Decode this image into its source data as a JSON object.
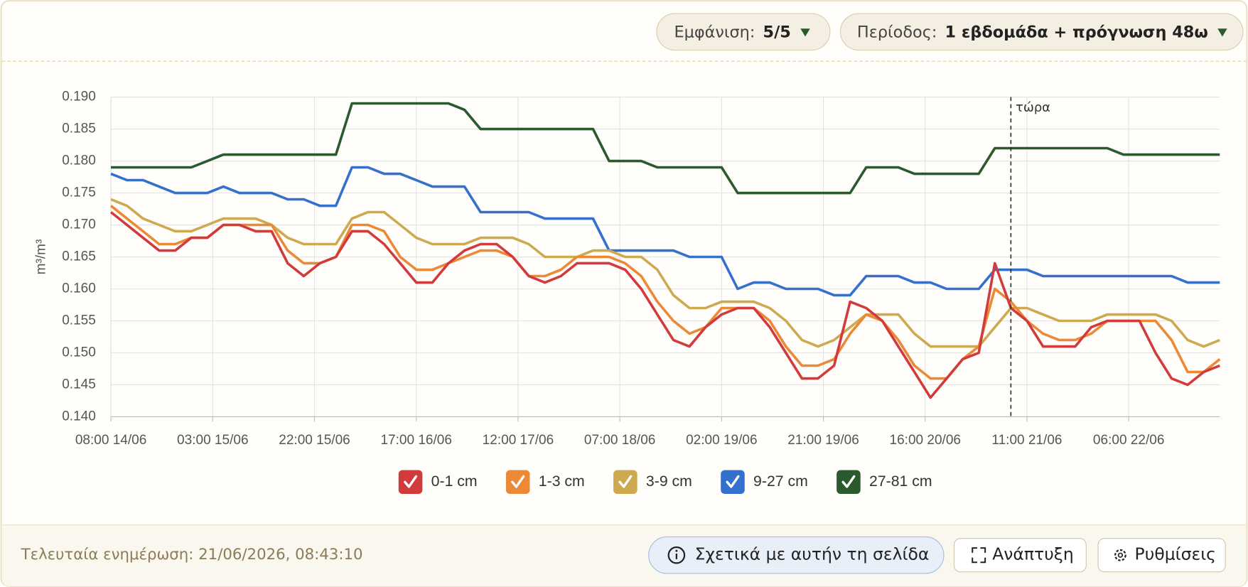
{
  "header": {
    "display_label": "Εμφάνιση:",
    "display_value": "5/5",
    "period_label": "Περίοδος:",
    "period_value": "1 εβδομάδα + πρόγνωση 48ω"
  },
  "chart_data": {
    "type": "line",
    "y_label": "m³/m³",
    "grid": true,
    "legend": "bottom",
    "ylim": [
      0.14,
      0.19
    ],
    "yticks": [
      {
        "value": 0.14,
        "label": "0.140"
      },
      0.145,
      {
        "value": 0.15,
        "label": "0.150"
      },
      0.155,
      {
        "value": 0.16,
        "label": "0.160"
      },
      0.165,
      {
        "value": 0.17,
        "label": "0.170"
      },
      0.175,
      {
        "value": 0.18,
        "label": "0.180"
      },
      0.185,
      {
        "value": 0.19,
        "label": "0.190"
      }
    ],
    "xlim": [
      "08:00 14/06",
      "23:00 22/06"
    ],
    "xticks": [
      "08:00 14/06",
      "03:00 15/06",
      "22:00 15/06",
      "17:00 16/06",
      "12:00 17/06",
      "07:00 18/06",
      "02:00 19/06",
      "21:00 19/06",
      "16:00 20/06",
      "11:00 21/06",
      "06:00 22/06"
    ],
    "annotations": [
      {
        "x": "08:00 21/06",
        "text": "τώρα"
      }
    ],
    "x": [
      "08:00 14/06",
      "11:00 14/06",
      "14:00 14/06",
      "17:00 14/06",
      "20:00 14/06",
      "23:00 14/06",
      "02:00 15/06",
      "05:00 15/06",
      "08:00 15/06",
      "11:00 15/06",
      "14:00 15/06",
      "17:00 15/06",
      "20:00 15/06",
      "23:00 15/06",
      "02:00 16/06",
      "05:00 16/06",
      "08:00 16/06",
      "11:00 16/06",
      "14:00 16/06",
      "17:00 16/06",
      "20:00 16/06",
      "23:00 16/06",
      "02:00 17/06",
      "05:00 17/06",
      "08:00 17/06",
      "11:00 17/06",
      "14:00 17/06",
      "17:00 17/06",
      "20:00 17/06",
      "23:00 17/06",
      "02:00 18/06",
      "05:00 18/06",
      "08:00 18/06",
      "11:00 18/06",
      "14:00 18/06",
      "17:00 18/06",
      "20:00 18/06",
      "23:00 18/06",
      "02:00 19/06",
      "05:00 19/06",
      "08:00 19/06",
      "11:00 19/06",
      "14:00 19/06",
      "17:00 19/06",
      "20:00 19/06",
      "23:00 19/06",
      "02:00 20/06",
      "05:00 20/06",
      "08:00 20/06",
      "11:00 20/06",
      "14:00 20/06",
      "17:00 20/06",
      "20:00 20/06",
      "23:00 20/06",
      "02:00 21/06",
      "05:00 21/06",
      "08:00 21/06",
      "11:00 21/06",
      "14:00 21/06",
      "17:00 21/06",
      "20:00 21/06",
      "23:00 21/06",
      "02:00 22/06",
      "05:00 22/06",
      "08:00 22/06",
      "11:00 22/06",
      "14:00 22/06",
      "17:00 22/06",
      "20:00 22/06",
      "23:00 22/06"
    ],
    "series": [
      {
        "name": "0-1 cm",
        "color": "#d23b3b",
        "values": [
          0.172,
          0.17,
          0.168,
          0.166,
          0.166,
          0.168,
          0.168,
          0.17,
          0.17,
          0.169,
          0.169,
          0.164,
          0.162,
          0.164,
          0.165,
          0.169,
          0.169,
          0.167,
          0.164,
          0.161,
          0.161,
          0.164,
          0.166,
          0.167,
          0.167,
          0.165,
          0.162,
          0.161,
          0.162,
          0.164,
          0.164,
          0.164,
          0.163,
          0.16,
          0.156,
          0.152,
          0.151,
          0.154,
          0.156,
          0.157,
          0.157,
          0.154,
          0.15,
          0.146,
          0.146,
          0.148,
          0.158,
          0.157,
          0.155,
          0.151,
          0.147,
          0.143,
          0.146,
          0.149,
          0.15,
          0.164,
          0.157,
          0.155,
          0.151,
          0.151,
          0.151,
          0.154,
          0.155,
          0.155,
          0.155,
          0.15,
          0.146,
          0.145,
          0.147,
          0.148
        ]
      },
      {
        "name": "1-3 cm",
        "color": "#ec8936",
        "values": [
          0.173,
          0.171,
          0.169,
          0.167,
          0.167,
          0.168,
          0.168,
          0.17,
          0.17,
          0.17,
          0.17,
          0.166,
          0.164,
          0.164,
          0.165,
          0.17,
          0.17,
          0.169,
          0.165,
          0.163,
          0.163,
          0.164,
          0.165,
          0.166,
          0.166,
          0.165,
          0.162,
          0.162,
          0.163,
          0.165,
          0.165,
          0.165,
          0.164,
          0.162,
          0.158,
          0.155,
          0.153,
          0.154,
          0.157,
          0.157,
          0.157,
          0.155,
          0.151,
          0.148,
          0.148,
          0.149,
          0.153,
          0.156,
          0.155,
          0.152,
          0.148,
          0.146,
          0.146,
          0.149,
          0.151,
          0.16,
          0.158,
          0.155,
          0.153,
          0.152,
          0.152,
          0.153,
          0.155,
          0.155,
          0.155,
          0.155,
          0.152,
          0.147,
          0.147,
          0.149
        ]
      },
      {
        "name": "3-9 cm",
        "color": "#cdaa4f",
        "values": [
          0.174,
          0.173,
          0.171,
          0.17,
          0.169,
          0.169,
          0.17,
          0.171,
          0.171,
          0.171,
          0.17,
          0.168,
          0.167,
          0.167,
          0.167,
          0.171,
          0.172,
          0.172,
          0.17,
          0.168,
          0.167,
          0.167,
          0.167,
          0.168,
          0.168,
          0.168,
          0.167,
          0.165,
          0.165,
          0.165,
          0.166,
          0.166,
          0.165,
          0.165,
          0.163,
          0.159,
          0.157,
          0.157,
          0.158,
          0.158,
          0.158,
          0.157,
          0.155,
          0.152,
          0.151,
          0.152,
          0.154,
          0.156,
          0.156,
          0.156,
          0.153,
          0.151,
          0.151,
          0.151,
          0.151,
          0.154,
          0.157,
          0.157,
          0.156,
          0.155,
          0.155,
          0.155,
          0.156,
          0.156,
          0.156,
          0.156,
          0.155,
          0.152,
          0.151,
          0.152
        ]
      },
      {
        "name": "9-27 cm",
        "color": "#3470cc",
        "values": [
          0.178,
          0.177,
          0.177,
          0.176,
          0.175,
          0.175,
          0.175,
          0.176,
          0.175,
          0.175,
          0.175,
          0.174,
          0.174,
          0.173,
          0.173,
          0.179,
          0.179,
          0.178,
          0.178,
          0.177,
          0.176,
          0.176,
          0.176,
          0.172,
          0.172,
          0.172,
          0.172,
          0.171,
          0.171,
          0.171,
          0.171,
          0.166,
          0.166,
          0.166,
          0.166,
          0.166,
          0.165,
          0.165,
          0.165,
          0.16,
          0.161,
          0.161,
          0.16,
          0.16,
          0.16,
          0.159,
          0.159,
          0.162,
          0.162,
          0.162,
          0.161,
          0.161,
          0.16,
          0.16,
          0.16,
          0.163,
          0.163,
          0.163,
          0.162,
          0.162,
          0.162,
          0.162,
          0.162,
          0.162,
          0.162,
          0.162,
          0.162,
          0.161,
          0.161,
          0.161
        ]
      },
      {
        "name": "27-81 cm",
        "color": "#2b5a2f",
        "values": [
          0.179,
          0.179,
          0.179,
          0.179,
          0.179,
          0.179,
          0.18,
          0.181,
          0.181,
          0.181,
          0.181,
          0.181,
          0.181,
          0.181,
          0.181,
          0.189,
          0.189,
          0.189,
          0.189,
          0.189,
          0.189,
          0.189,
          0.188,
          0.185,
          0.185,
          0.185,
          0.185,
          0.185,
          0.185,
          0.185,
          0.185,
          0.18,
          0.18,
          0.18,
          0.179,
          0.179,
          0.179,
          0.179,
          0.179,
          0.175,
          0.175,
          0.175,
          0.175,
          0.175,
          0.175,
          0.175,
          0.175,
          0.179,
          0.179,
          0.179,
          0.178,
          0.178,
          0.178,
          0.178,
          0.178,
          0.182,
          0.182,
          0.182,
          0.182,
          0.182,
          0.182,
          0.182,
          0.182,
          0.181,
          0.181,
          0.181,
          0.181,
          0.181,
          0.181,
          0.181
        ]
      }
    ]
  },
  "footer": {
    "last_update": "Τελευταία ενημέρωση: 21/06/2026, 08:43:10",
    "buttons": [
      "Σχετικά με αυτήν τη σελίδα",
      "Ανάπτυξη",
      "Ρυθμίσεις"
    ]
  }
}
